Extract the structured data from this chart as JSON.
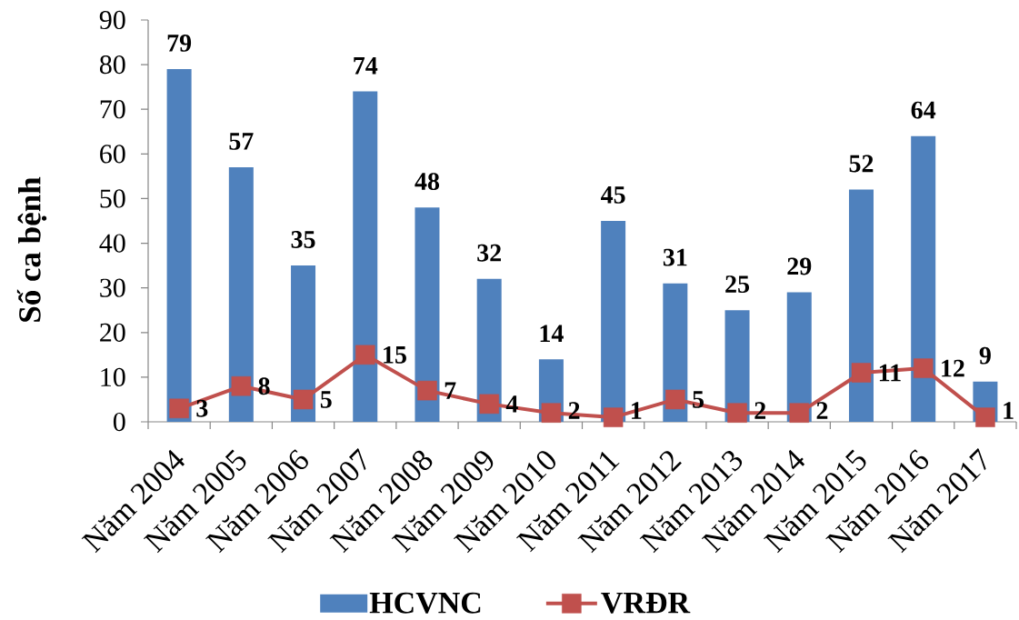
{
  "chart_data": {
    "type": "bar",
    "ylabel": "Số ca bệnh",
    "categories": [
      "Năm 2004",
      "Năm 2005",
      "Năm 2006",
      "Năm 2007",
      "Năm 2008",
      "Năm 2009",
      "Năm 2010",
      "Năm 2011",
      "Năm 2012",
      "Năm 2013",
      "Năm 2014",
      "Năm 2015",
      "Năm 2016",
      "Năm 2017"
    ],
    "series": [
      {
        "name": "HCVNC",
        "color": "#4f81bd",
        "values": [
          79,
          57,
          35,
          74,
          48,
          32,
          14,
          45,
          31,
          25,
          29,
          52,
          64,
          9
        ]
      },
      {
        "name": "VRĐR",
        "type": "line",
        "color": "#c0504d",
        "marker": "square",
        "line_style": "solid",
        "values": [
          3,
          8,
          5,
          15,
          7,
          4,
          2,
          1,
          5,
          2,
          2,
          11,
          12,
          1
        ]
      }
    ],
    "ylim": [
      0,
      90
    ],
    "yticks": [
      0,
      10,
      20,
      30,
      40,
      50,
      60,
      70,
      80,
      90
    ],
    "data_labels": true,
    "legend": "bottom",
    "grid": false
  }
}
